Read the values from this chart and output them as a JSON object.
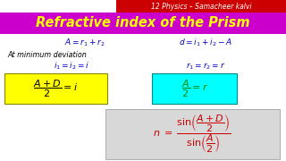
{
  "bg_color": "#ffffff",
  "header_bg": "#cc0000",
  "header_text": "12 Physics – Samacheer kalvi",
  "header_text_color": "#ffffff",
  "title_text": "Refractive index of the Prism",
  "title_color": "#ffff00",
  "title_bg": "#cc00cc",
  "eq1": "$A = r_1 + r_2$",
  "eq2": "$d = i_1 + i_2 - A$",
  "eq3": "At minimum deviation",
  "eq4": "$i_1 = i_2 = i$",
  "eq5": "$r_1 = r_2 = r$",
  "box1_bg": "#ffff00",
  "box1_text": "$\\dfrac{A+D}{2} = i$",
  "box2_bg": "#00ffff",
  "box2_text": "$\\dfrac{A}{2} = r$",
  "box2_text_color": "#008800",
  "final_box_bg": "#d8d8d8",
  "eq_color": "#0000cc",
  "italic_color": "#000000",
  "final_color": "#cc0000"
}
